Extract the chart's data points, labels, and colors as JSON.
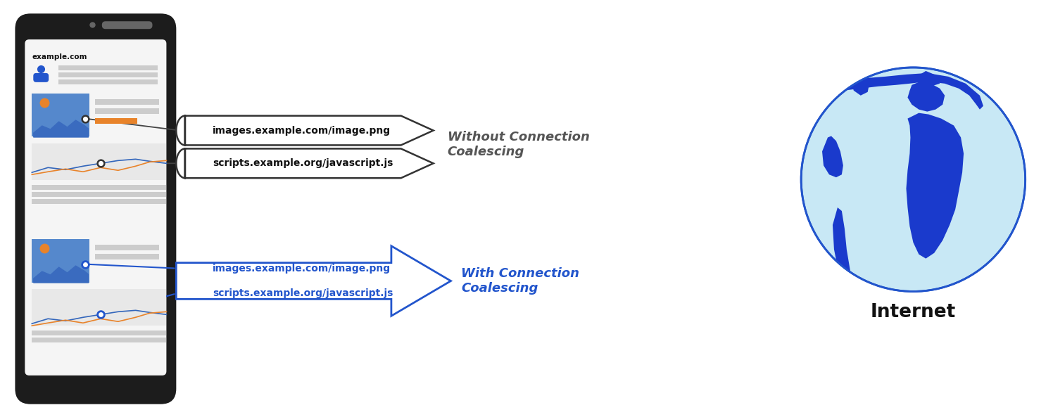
{
  "bg_color": "#ffffff",
  "arrow_color_without": "#333333",
  "arrow_color_with": "#2255cc",
  "text_color_without": "#555555",
  "text_color_with": "#2255cc",
  "without_label": "Without Connection\nCoalescing",
  "with_label": "With Connection\nCoalescing",
  "internet_label": "Internet",
  "arrow1_text": "images.example.com/image.png",
  "arrow2_text": "scripts.example.org/javascript.js",
  "globe_ocean": "#c8e8f5",
  "globe_land": "#1a3acc",
  "globe_border": "#2255cc",
  "phone_color": "#1c1c1c",
  "screen_color": "#f5f5f5",
  "gray_line": "#cccccc",
  "image_blue": "#5588cc",
  "orange": "#e8832a"
}
